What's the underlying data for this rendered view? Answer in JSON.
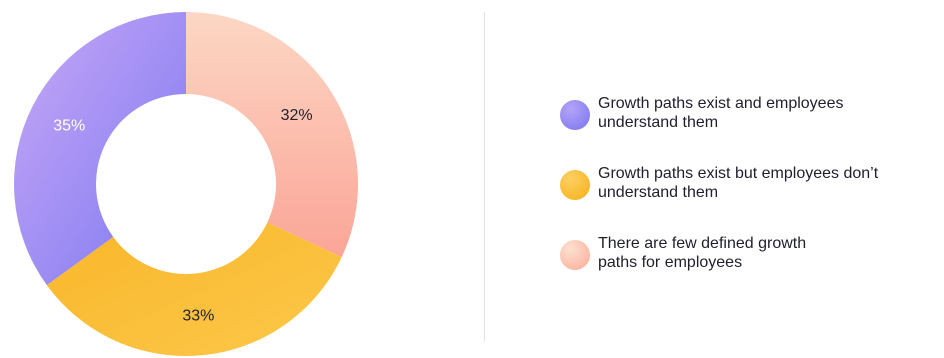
{
  "chart_data": {
    "type": "pie",
    "variant": "donut",
    "grid": false,
    "legend_position": "right",
    "categories": [
      "Growth paths exist and employees understand them",
      "Growth paths exist but employees don’t understand them",
      "There are few defined growth paths for employees"
    ],
    "values": [
      35,
      33,
      32
    ],
    "data_labels": [
      "35%",
      "33%",
      "32%"
    ],
    "colors": [
      "#8b80f2",
      "#fbbd2f",
      "#fcb3a3"
    ],
    "label_colors": [
      "#ffffff",
      "#1f1f2e",
      "#1f1f2e"
    ],
    "legend": [
      {
        "line1": "Growth paths exist and employees",
        "line2": "understand them"
      },
      {
        "line1": "Growth paths exist but employees don’t",
        "line2": "understand them"
      },
      {
        "line1": "There are few defined growth",
        "line2": "paths for employees"
      }
    ]
  }
}
